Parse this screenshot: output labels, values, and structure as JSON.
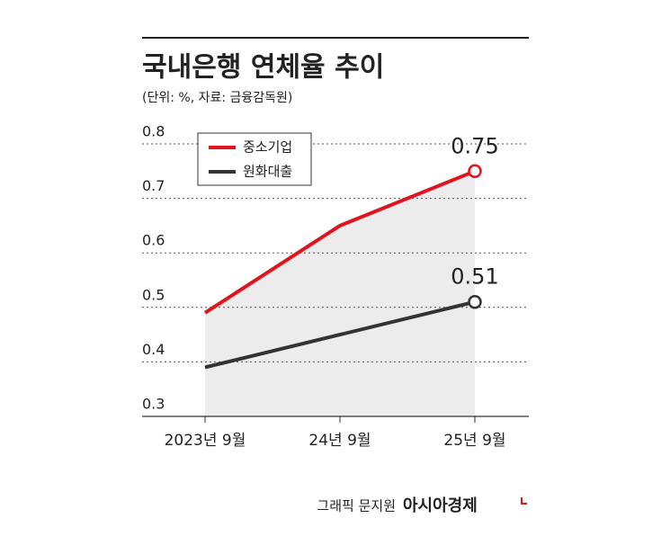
{
  "chart_data": {
    "type": "line",
    "title": "국내은행 연체율 추이",
    "subtitle": "(단위: %, 자료: 금융감독원)",
    "categories": [
      "2023년 9월",
      "24년 9월",
      "25년 9월"
    ],
    "series": [
      {
        "name": "중소기업",
        "color": "#e0141e",
        "values": [
          0.49,
          0.65,
          0.75
        ]
      },
      {
        "name": "원화대출",
        "color": "#333333",
        "values": [
          0.39,
          0.45,
          0.51
        ]
      }
    ],
    "ylim": [
      0.3,
      0.8
    ],
    "yticks": [
      0.3,
      0.4,
      0.5,
      0.6,
      0.7,
      0.8
    ],
    "grid": true,
    "credit": "그래픽 문지원",
    "brand": "아시아경제"
  }
}
